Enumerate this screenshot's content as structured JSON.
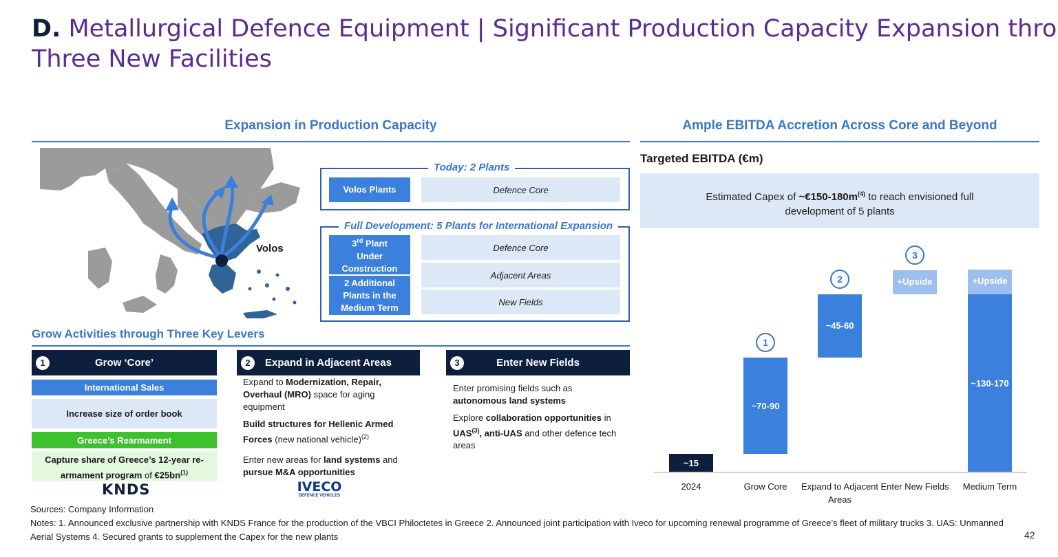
{
  "title": {
    "letter": "D.",
    "line1": " Metallurgical Defence Equipment | Significant Production Capacity Expansion through",
    "line2": "Three New Facilities"
  },
  "left_section": {
    "heading": "Expansion in Production Capacity",
    "map_label": "Volos",
    "today": {
      "legend": "Today: 2 Plants",
      "plant": "Volos Plants",
      "area": "Defence Core"
    },
    "full": {
      "legend": "Full Development: 5 Plants for International Expansion",
      "plant_a": "3rd Plant Under Construction",
      "plant_a_main": "3",
      "plant_a_sup": "rd",
      "plant_a_rest": " Plant Under Construction",
      "plant_b": "2 Additional Plants in the Medium Term",
      "areas": [
        "Defence Core",
        "Adjacent Areas",
        "New Fields"
      ]
    }
  },
  "levers": {
    "heading": "Grow Activities through Three Key Levers",
    "core": {
      "num": "1",
      "title": "Grow ‘Core’",
      "intl": "International Sales",
      "order": "Increase size of order book",
      "greece": "Greece’s Rearmament",
      "capture_a": "Capture share of Greece’s 12-year re-armament program",
      "capture_b": " of ",
      "capture_c": "€25bn",
      "capture_sup": "(1)",
      "logo": "KNDS"
    },
    "adjacent": {
      "num": "2",
      "title": "Expand in Adjacent Areas",
      "p1a": "Expand to ",
      "p1b": "Modernization, Repair, Overhaul (MRO)",
      "p1c": " space for aging equipment",
      "p2a": "Build structures for Hellenic Armed Forces",
      "p2b": " (new national vehicle)",
      "p2sup": "(2)",
      "p3a": "Enter new areas for ",
      "p3b": "land systems",
      "p3c": " and ",
      "p3d": "pursue M&A opportunities",
      "logo": "IVECO",
      "logo_sub": "DEFENCE VEHICLES"
    },
    "new_fields": {
      "num": "3",
      "title": "Enter New Fields",
      "p1a": "Enter promising fields such as ",
      "p1b": "autonomous land systems",
      "p2a": "Explore ",
      "p2b": "collaboration opportunities",
      "p2c": " in ",
      "p2d": "UAS",
      "p2sup": "(3)",
      "p2e": ", anti-UAS",
      "p2f": " and other defence tech areas"
    }
  },
  "right_section": {
    "heading": "Ample EBITDA Accretion Across Core and Beyond",
    "subheading": "Targeted EBITDA (€m)",
    "capex_a": "Estimated Capex of ",
    "capex_b": "~€150-180m",
    "capex_sup": "(4)",
    "capex_c": " to reach envisioned full development of 5 plants"
  },
  "chart_data": {
    "type": "bar",
    "subtype": "waterfall",
    "title": "Targeted EBITDA (€m)",
    "categories": [
      "2024",
      "Grow Core",
      "Expand to Adjacent Areas",
      "Enter New Fields",
      "Medium Term"
    ],
    "labels": [
      "~15",
      "~70-90",
      "~45-60",
      "+Upside",
      "~130-170"
    ],
    "upside_label": "+Upside",
    "steps": [
      "",
      "1",
      "2",
      "3",
      ""
    ],
    "values_mid": [
      15,
      80,
      52.5,
      0,
      147.5
    ],
    "colors": {
      "base": "#0d1f3c",
      "increment": "#3a80dc",
      "upside": "#9dbfed"
    }
  },
  "footer": {
    "sources": "Sources: Company Information",
    "notes": "Notes: 1. Announced exclusive partnership with KNDS France for the production of the VBCI Philoctetes in Greece 2. Announced joint participation with Iveco for upcoming renewal programme of Greece’s fleet of military trucks 3. UAS: Unmanned Aerial Systems 4. Secured grants to supplement the Capex for the new plants",
    "page": "42"
  }
}
